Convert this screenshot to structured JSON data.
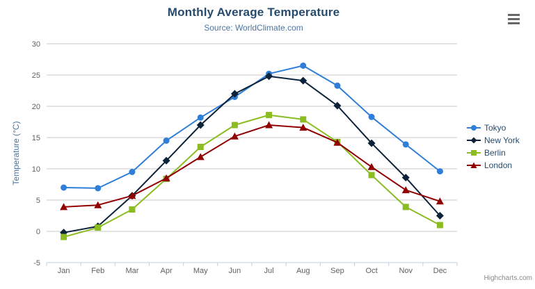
{
  "credit": "Highcharts.com",
  "context_menu": {
    "icon": "hamburger-icon"
  },
  "colors": {
    "title": "#274b6d",
    "subtitle": "#4d759e",
    "axis_label": "#606060",
    "axis_title": "#4d759e",
    "grid_line": "#c8c8c8",
    "axis_line": "#c0d0e0",
    "legend_text": "#274b6d",
    "credit_text": "#8a8a8a"
  },
  "chart_data": {
    "type": "line",
    "title": "Monthly Average Temperature",
    "subtitle": "Source: WorldClimate.com",
    "xlabel": "",
    "ylabel": "Temperature (°C)",
    "ylim": [
      -5,
      30
    ],
    "ytick_interval": 5,
    "grid": true,
    "legend_position": "right",
    "categories": [
      "Jan",
      "Feb",
      "Mar",
      "Apr",
      "May",
      "Jun",
      "Jul",
      "Aug",
      "Sep",
      "Oct",
      "Nov",
      "Dec"
    ],
    "series": [
      {
        "name": "Tokyo",
        "color": "#2f7ed8",
        "marker": "circle",
        "values": [
          7.0,
          6.9,
          9.5,
          14.5,
          18.2,
          21.5,
          25.2,
          26.5,
          23.3,
          18.3,
          13.9,
          9.6
        ]
      },
      {
        "name": "New York",
        "color": "#0d233a",
        "marker": "diamond",
        "values": [
          -0.2,
          0.8,
          5.7,
          11.3,
          17.0,
          22.0,
          24.8,
          24.1,
          20.1,
          14.1,
          8.6,
          2.5
        ]
      },
      {
        "name": "Berlin",
        "color": "#8bbc21",
        "marker": "square",
        "values": [
          -0.9,
          0.6,
          3.5,
          8.4,
          13.5,
          17.0,
          18.6,
          17.9,
          14.3,
          9.0,
          3.9,
          1.0
        ]
      },
      {
        "name": "London",
        "color": "#910000",
        "marker": "triangle",
        "values": [
          3.9,
          4.2,
          5.7,
          8.5,
          11.9,
          15.2,
          17.0,
          16.6,
          14.2,
          10.3,
          6.6,
          4.8
        ]
      }
    ]
  }
}
